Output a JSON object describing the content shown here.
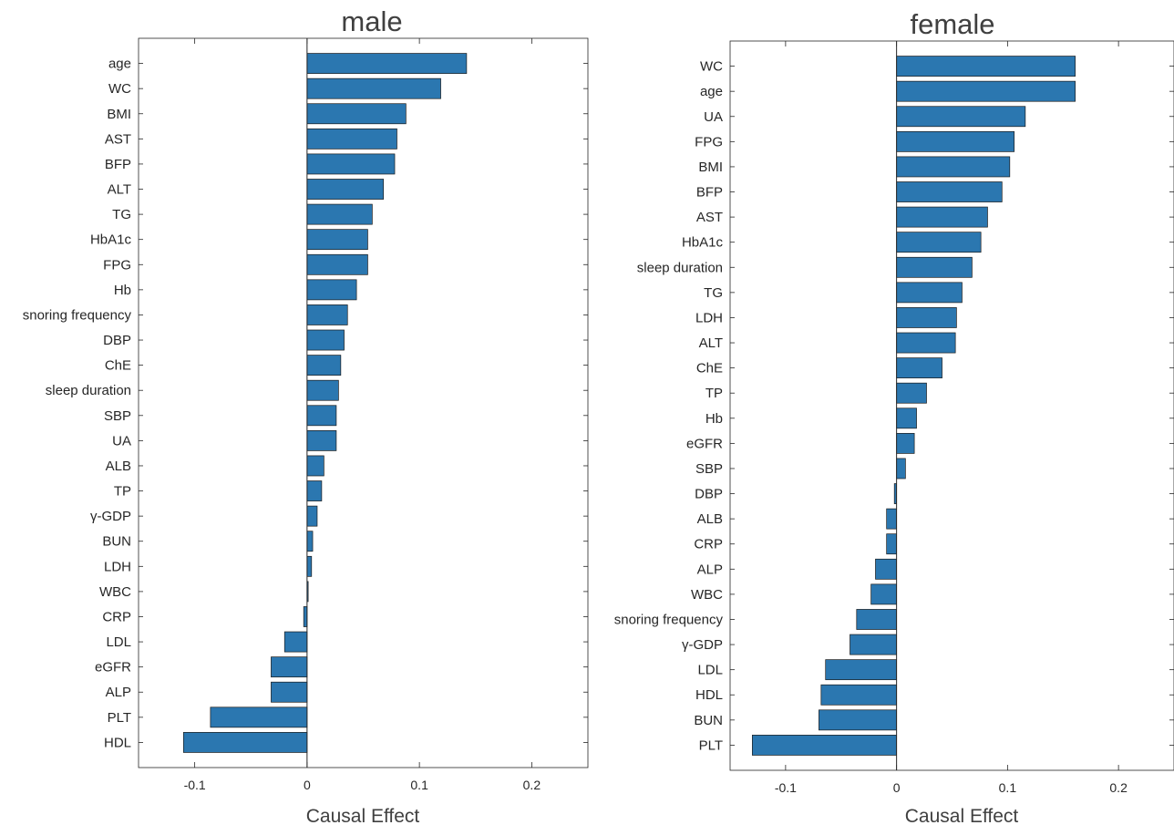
{
  "colors": {
    "bar": "#2b77b0",
    "bar_edge": "#1b1b1b",
    "axis": "#262626"
  },
  "chart_data": [
    {
      "type": "bar",
      "orientation": "horizontal",
      "title": "male",
      "xlabel": "Causal Effect",
      "ylabel": "",
      "xlim": [
        -0.15,
        0.25
      ],
      "xticks": [
        -0.1,
        0,
        0.1,
        0.2
      ],
      "xtick_labels": [
        "-0.1",
        "0",
        "0.1",
        "0.2"
      ],
      "grid": false,
      "categories": [
        "age",
        "WC",
        "BMI",
        "AST",
        "BFP",
        "ALT",
        "TG",
        "HbA1c",
        "FPG",
        "Hb",
        "snoring frequency",
        "DBP",
        "ChE",
        "sleep duration",
        "SBP",
        "UA",
        "ALB",
        "TP",
        "γ-GDP",
        "BUN",
        "LDH",
        "WBC",
        "CRP",
        "LDL",
        "eGFR",
        "ALP",
        "PLT",
        "HDL"
      ],
      "values": [
        0.142,
        0.119,
        0.088,
        0.08,
        0.078,
        0.068,
        0.058,
        0.054,
        0.054,
        0.044,
        0.036,
        0.033,
        0.03,
        0.028,
        0.026,
        0.026,
        0.015,
        0.013,
        0.009,
        0.005,
        0.004,
        0.001,
        -0.003,
        -0.02,
        -0.032,
        -0.032,
        -0.086,
        -0.11
      ]
    },
    {
      "type": "bar",
      "orientation": "horizontal",
      "title": "female",
      "xlabel": "Causal Effect",
      "ylabel": "",
      "xlim": [
        -0.15,
        0.25
      ],
      "xticks": [
        -0.1,
        0,
        0.1,
        0.2
      ],
      "xtick_labels": [
        "-0.1",
        "0",
        "0.1",
        "0.2"
      ],
      "grid": false,
      "categories": [
        "WC",
        "age",
        "UA",
        "FPG",
        "BMI",
        "BFP",
        "AST",
        "HbA1c",
        "sleep duration",
        "TG",
        "LDH",
        "ALT",
        "ChE",
        "TP",
        "Hb",
        "eGFR",
        "SBP",
        "DBP",
        "ALB",
        "CRP",
        "ALP",
        "WBC",
        "snoring frequency",
        "γ-GDP",
        "LDL",
        "HDL",
        "BUN",
        "PLT"
      ],
      "values": [
        0.161,
        0.161,
        0.116,
        0.106,
        0.102,
        0.095,
        0.082,
        0.076,
        0.068,
        0.059,
        0.054,
        0.053,
        0.041,
        0.027,
        0.018,
        0.016,
        0.008,
        -0.002,
        -0.009,
        -0.009,
        -0.019,
        -0.023,
        -0.036,
        -0.042,
        -0.064,
        -0.068,
        -0.07,
        -0.13
      ]
    }
  ]
}
